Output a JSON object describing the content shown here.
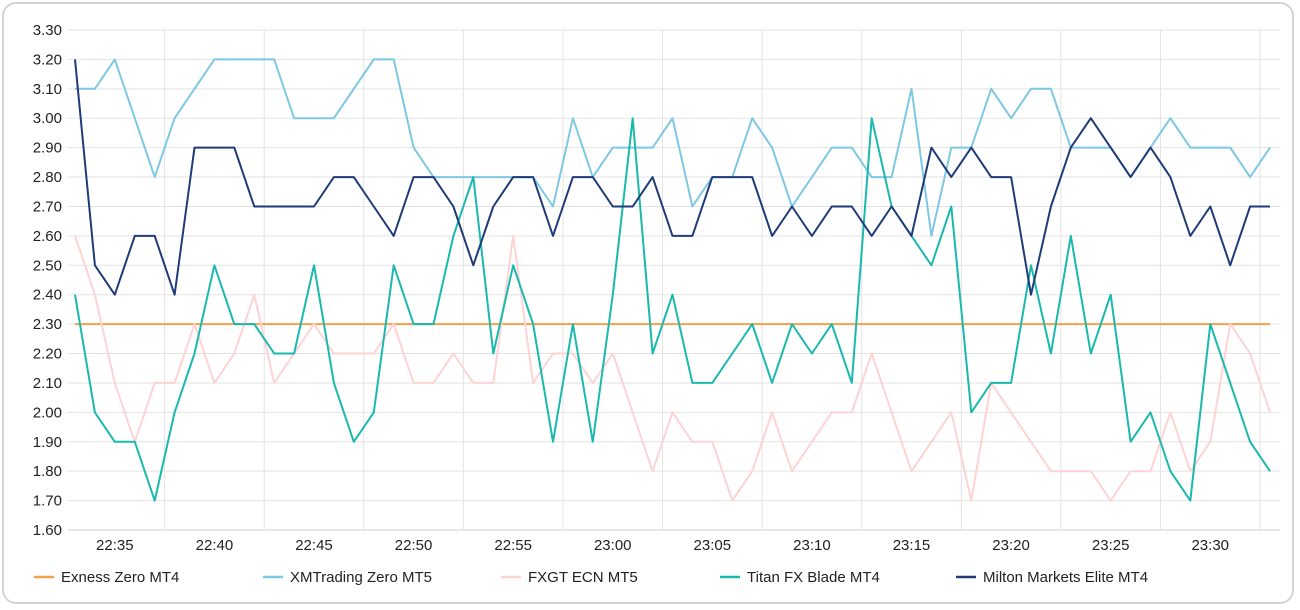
{
  "chart_data": {
    "type": "line",
    "ylim": [
      1.6,
      3.3
    ],
    "yticks": [
      "1.60",
      "1.70",
      "1.80",
      "1.90",
      "2.00",
      "2.10",
      "2.20",
      "2.30",
      "2.40",
      "2.50",
      "2.60",
      "2.70",
      "2.80",
      "2.90",
      "3.00",
      "3.10",
      "3.20",
      "3.30"
    ],
    "xticks": [
      "22:35",
      "22:40",
      "22:45",
      "22:50",
      "22:55",
      "23:00",
      "23:05",
      "23:10",
      "23:15",
      "23:20",
      "23:25",
      "23:30"
    ],
    "grid": true,
    "legend_position": "bottom",
    "x": [
      "22:33",
      "22:34",
      "22:35",
      "22:36",
      "22:37",
      "22:38",
      "22:39",
      "22:40",
      "22:41",
      "22:42",
      "22:43",
      "22:44",
      "22:45",
      "22:46",
      "22:47",
      "22:48",
      "22:49",
      "22:50",
      "22:51",
      "22:52",
      "22:53",
      "22:54",
      "22:55",
      "22:56",
      "22:57",
      "22:58",
      "22:59",
      "23:00",
      "23:01",
      "23:02",
      "23:03",
      "23:04",
      "23:05",
      "23:06",
      "23:07",
      "23:08",
      "23:09",
      "23:10",
      "23:11",
      "23:12",
      "23:13",
      "23:14",
      "23:15",
      "23:16",
      "23:17",
      "23:18",
      "23:19",
      "23:20",
      "23:21",
      "23:22",
      "23:23",
      "23:24",
      "23:25",
      "23:26",
      "23:27",
      "23:28",
      "23:29",
      "23:30",
      "23:31",
      "23:32",
      "23:33"
    ],
    "series": [
      {
        "name": "Exness Zero MT4",
        "color": "#f5a04a",
        "values": [
          2.3,
          2.3,
          2.3,
          2.3,
          2.3,
          2.3,
          2.3,
          2.3,
          2.3,
          2.3,
          2.3,
          2.3,
          2.3,
          2.3,
          2.3,
          2.3,
          2.3,
          2.3,
          2.3,
          2.3,
          2.3,
          2.3,
          2.3,
          2.3,
          2.3,
          2.3,
          2.3,
          2.3,
          2.3,
          2.3,
          2.3,
          2.3,
          2.3,
          2.3,
          2.3,
          2.3,
          2.3,
          2.3,
          2.3,
          2.3,
          2.3,
          2.3,
          2.3,
          2.3,
          2.3,
          2.3,
          2.3,
          2.3,
          2.3,
          2.3,
          2.3,
          2.3,
          2.3,
          2.3,
          2.3,
          2.3,
          2.3,
          2.3,
          2.3,
          2.3,
          2.3
        ]
      },
      {
        "name": "XMTrading Zero MT5",
        "color": "#7ec8e3",
        "values": [
          3.1,
          3.1,
          3.2,
          3.0,
          2.8,
          3.0,
          3.1,
          3.2,
          3.2,
          3.2,
          3.2,
          3.0,
          3.0,
          3.0,
          3.1,
          3.2,
          3.2,
          2.9,
          2.8,
          2.8,
          2.8,
          2.8,
          2.8,
          2.8,
          2.7,
          3.0,
          2.8,
          2.9,
          2.9,
          2.9,
          3.0,
          2.7,
          2.8,
          2.8,
          3.0,
          2.9,
          2.7,
          2.8,
          2.9,
          2.9,
          2.8,
          2.8,
          3.1,
          2.6,
          2.9,
          2.9,
          3.1,
          3.0,
          3.1,
          3.1,
          2.9,
          2.9,
          2.9,
          2.8,
          2.9,
          3.0,
          2.9,
          2.9,
          2.9,
          2.8,
          2.9
        ]
      },
      {
        "name": "FXGT ECN MT5",
        "color": "#fdd3d3",
        "values": [
          2.6,
          2.4,
          2.1,
          1.9,
          2.1,
          2.1,
          2.3,
          2.1,
          2.2,
          2.4,
          2.1,
          2.2,
          2.3,
          2.2,
          2.2,
          2.2,
          2.3,
          2.1,
          2.1,
          2.2,
          2.1,
          2.1,
          2.6,
          2.1,
          2.2,
          2.2,
          2.1,
          2.2,
          2.0,
          1.8,
          2.0,
          1.9,
          1.9,
          1.7,
          1.8,
          2.0,
          1.8,
          1.9,
          2.0,
          2.0,
          2.2,
          2.0,
          1.8,
          1.9,
          2.0,
          1.7,
          2.1,
          2.0,
          1.9,
          1.8,
          1.8,
          1.8,
          1.7,
          1.8,
          1.8,
          2.0,
          1.8,
          1.9,
          2.3,
          2.2,
          2.0
        ]
      },
      {
        "name": "Titan FX Blade MT4",
        "color": "#1ab9ad",
        "values": [
          2.4,
          2.0,
          1.9,
          1.9,
          1.7,
          2.0,
          2.2,
          2.5,
          2.3,
          2.3,
          2.2,
          2.2,
          2.5,
          2.1,
          1.9,
          2.0,
          2.5,
          2.3,
          2.3,
          2.6,
          2.8,
          2.2,
          2.5,
          2.3,
          1.9,
          2.3,
          1.9,
          2.4,
          3.0,
          2.2,
          2.4,
          2.1,
          2.1,
          2.2,
          2.3,
          2.1,
          2.3,
          2.2,
          2.3,
          2.1,
          3.0,
          2.7,
          2.6,
          2.5,
          2.7,
          2.0,
          2.1,
          2.1,
          2.5,
          2.2,
          2.6,
          2.2,
          2.4,
          1.9,
          2.0,
          1.8,
          1.7,
          2.3,
          2.1,
          1.9,
          1.8
        ]
      },
      {
        "name": "Milton Markets Elite MT4",
        "color": "#1f3b78",
        "values": [
          3.2,
          2.5,
          2.4,
          2.6,
          2.6,
          2.4,
          2.9,
          2.9,
          2.9,
          2.7,
          2.7,
          2.7,
          2.7,
          2.8,
          2.8,
          2.7,
          2.6,
          2.8,
          2.8,
          2.7,
          2.5,
          2.7,
          2.8,
          2.8,
          2.6,
          2.8,
          2.8,
          2.7,
          2.7,
          2.8,
          2.6,
          2.6,
          2.8,
          2.8,
          2.8,
          2.6,
          2.7,
          2.6,
          2.7,
          2.7,
          2.6,
          2.7,
          2.6,
          2.9,
          2.8,
          2.9,
          2.8,
          2.8,
          2.4,
          2.7,
          2.9,
          3.0,
          2.9,
          2.8,
          2.9,
          2.8,
          2.6,
          2.7,
          2.5,
          2.7,
          2.7
        ]
      }
    ]
  }
}
